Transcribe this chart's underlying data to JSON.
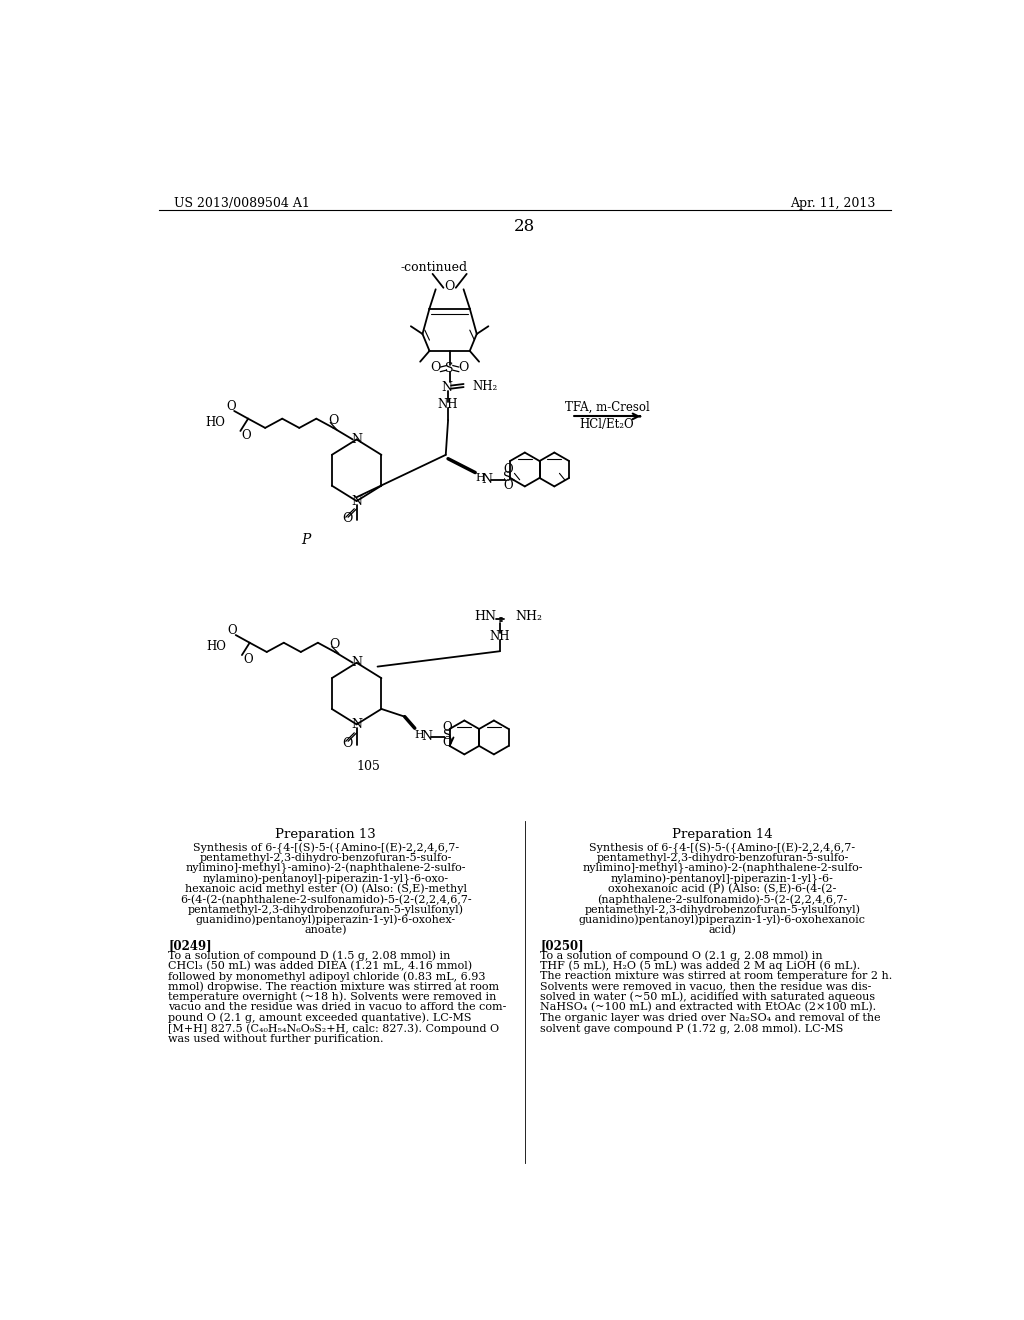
{
  "page_number": "28",
  "header_left": "US 2013/0089504 A1",
  "header_right": "Apr. 11, 2013",
  "continued_label": "-continued",
  "reaction_arrow_text_top": "TFA, m-Cresol",
  "reaction_arrow_text_bottom": "HCl/Et₂O",
  "compound_p_label": "P",
  "compound_105_label": "105",
  "prep13_title": "Preparation 13",
  "prep13_synthesis_lines": [
    "Synthesis of 6-{4-[(S)-5-({Amino-[(E)-2,2,4,6,7-",
    "pentamethyl-2,3-dihydro-benzofuran-5-sulfo-",
    "nylimino]-methyl}-amino)-2-(naphthalene-2-sulfo-",
    "nylamino)-pentanoyl]-piperazin-1-yl}-6-oxo-",
    "hexanoic acid methyl ester (O) (Also: (S,E)-methyl",
    "6-(4-(2-(naphthalene-2-sulfonamido)-5-(2-(2,2,4,6,7-",
    "pentamethyl-2,3-dihydrobenzofuran-5-ylsulfonyl)",
    "guanidino)pentanoyl)piperazin-1-yl)-6-oxohex-",
    "anoate)"
  ],
  "prep13_tag": "[0249]",
  "prep13_body_lines": [
    "To a solution of compound D (1.5 g, 2.08 mmol) in",
    "CHCl₃ (50 mL) was added DIEA (1.21 mL, 4.16 mmol)",
    "followed by monomethyl adipoyl chloride (0.83 mL, 6.93",
    "mmol) dropwise. The reaction mixture was stirred at room",
    "temperature overnight (~18 h). Solvents were removed in",
    "vacuo and the residue was dried in vacuo to afford the com-",
    "pound O (2.1 g, amount exceeded quantative). LC-MS",
    "[M+H] 827.5 (C₄₀H₅₄N₆O₉S₂+H, calc: 827.3). Compound O",
    "was used without further purification."
  ],
  "prep14_title": "Preparation 14",
  "prep14_synthesis_lines": [
    "Synthesis of 6-{4-[(S)-5-({Amino-[(E)-2,2,4,6,7-",
    "pentamethyl-2,3-dihydro-benzofuran-5-sulfo-",
    "nylimino]-methyl}-amino)-2-(naphthalene-2-sulfo-",
    "nylamino)-pentanoyl]-piperazin-1-yl}-6-",
    "oxohexanoic acid (P) (Also: (S,E)-6-(4-(2-",
    "(naphthalene-2-sulfonamido)-5-(2-(2,2,4,6,7-",
    "pentamethyl-2,3-dihydrobenzofuran-5-ylsulfonyl)",
    "guanidino)pentanoyl)piperazin-1-yl)-6-oxohexanoic",
    "acid)"
  ],
  "prep14_tag": "[0250]",
  "prep14_body_lines": [
    "To a solution of compound O (2.1 g, 2.08 mmol) in",
    "THF (5 mL), H₂O (5 mL) was added 2 M aq LiOH (6 mL).",
    "The reaction mixture was stirred at room temperature for 2 h.",
    "Solvents were removed in vacuo, then the residue was dis-",
    "solved in water (~50 mL), acidified with saturated aqueous",
    "NaHSO₄ (~100 mL) and extracted with EtOAc (2×100 mL).",
    "The organic layer was dried over Na₂SO₄ and removal of the",
    "solvent gave compound P (1.72 g, 2.08 mmol). LC-MS"
  ],
  "background_color": "#ffffff"
}
